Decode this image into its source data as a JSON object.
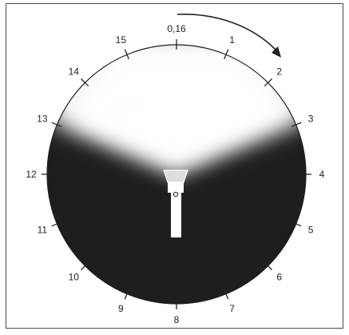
{
  "dial": {
    "tick_labels": [
      "0,16",
      "1",
      "2",
      "3",
      "4",
      "5",
      "6",
      "7",
      "8",
      "9",
      "10",
      "11",
      "12",
      "13",
      "14",
      "15"
    ],
    "direction": "clockwise",
    "colors": {
      "dark": "#1e1e1e",
      "light": "#ffffff",
      "ink": "#222222",
      "frame": "#4a4a4a"
    }
  },
  "icons": {
    "flashlight": "flashlight-icon",
    "arrow": "clockwise-arrow-icon"
  }
}
